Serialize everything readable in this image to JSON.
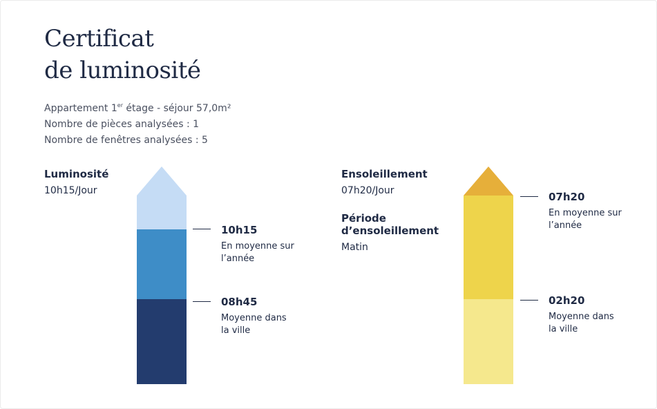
{
  "title": {
    "line1": "Certificat",
    "line2": "de luminosité"
  },
  "meta": {
    "line1_prefix": "Appartement 1",
    "line1_sup": "er",
    "line1_suffix": " étage - séjour 57,0m²",
    "line2": "Nombre de pièces analysées : 1",
    "line3": "Nombre de fenêtres analysées : 5"
  },
  "luminosite": {
    "label": "Luminosité",
    "value": "10h15/Jour",
    "annotations": [
      {
        "value": "10h15",
        "text": "En moyenne sur l’année"
      },
      {
        "value": "08h45",
        "text": "Moyenne dans la ville"
      }
    ],
    "colors": {
      "top": "#c5dcf5",
      "mid": "#3e8dc7",
      "bottom": "#233c6e"
    }
  },
  "ensoleillement": {
    "label": "Ensoleillement",
    "value": "07h20/Jour",
    "period_label": "Période d’ensoleillement",
    "period_value": "Matin",
    "annotations": [
      {
        "value": "07h20",
        "text": "En moyenne sur l’année"
      },
      {
        "value": "02h20",
        "text": "Moyenne dans la ville"
      }
    ],
    "colors": {
      "top": "#e6af3a",
      "mid": "#eed44b",
      "bottom": "#f5e88d"
    }
  }
}
